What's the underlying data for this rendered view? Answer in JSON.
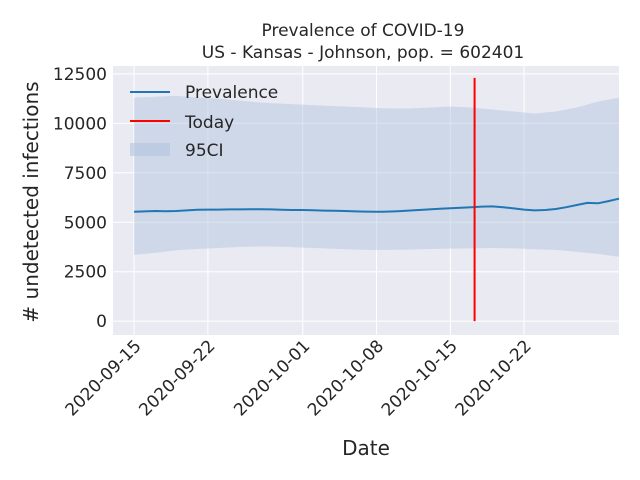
{
  "chart_data": {
    "type": "line",
    "title": "Prevalence of COVID-19",
    "subtitle": "US - Kansas - Johnson, pop. = 602401",
    "xlabel": "Date",
    "ylabel": "# undetected infections",
    "ylim": [
      -700,
      12900
    ],
    "yticks": [
      0,
      2500,
      5000,
      7500,
      10000,
      12500
    ],
    "ytick_labels": [
      "0",
      "2500",
      "5000",
      "7500",
      "10000",
      "12500"
    ],
    "xlim": [
      -2,
      46
    ],
    "xticks": [
      0,
      7,
      16,
      23,
      30,
      37
    ],
    "xtick_labels": [
      "2020-09-15",
      "2020-09-22",
      "2020-10-01",
      "2020-10-08",
      "2020-10-15",
      "2020-10-22"
    ],
    "grid": true,
    "legend_position": "top-left",
    "series": [
      {
        "name": "Prevalence",
        "color": "#1f77b4",
        "x": [
          0,
          1,
          2,
          3,
          4,
          5,
          6,
          7,
          8,
          9,
          10,
          11,
          12,
          13,
          14,
          15,
          16,
          17,
          18,
          19,
          20,
          21,
          22,
          23,
          24,
          25,
          26,
          27,
          28,
          29,
          30,
          31,
          32,
          33,
          34,
          35,
          36,
          37,
          38,
          39,
          40,
          41,
          42,
          43,
          44,
          45,
          46
        ],
        "values": [
          5530,
          5550,
          5570,
          5560,
          5570,
          5600,
          5630,
          5640,
          5640,
          5650,
          5650,
          5660,
          5660,
          5650,
          5630,
          5620,
          5620,
          5610,
          5590,
          5580,
          5570,
          5550,
          5540,
          5530,
          5540,
          5560,
          5590,
          5620,
          5650,
          5680,
          5710,
          5730,
          5760,
          5790,
          5800,
          5760,
          5700,
          5640,
          5600,
          5620,
          5670,
          5760,
          5870,
          5980,
          5960,
          6070,
          6190
        ]
      }
    ],
    "band": {
      "name": "95CI",
      "color": "#b0c4de",
      "x": [
        0,
        2,
        4,
        6,
        8,
        10,
        12,
        14,
        16,
        18,
        20,
        22,
        24,
        26,
        28,
        30,
        32,
        34,
        36,
        38,
        40,
        42,
        44,
        46
      ],
      "lower": [
        3350,
        3450,
        3580,
        3650,
        3700,
        3750,
        3780,
        3760,
        3720,
        3680,
        3640,
        3600,
        3600,
        3620,
        3650,
        3670,
        3680,
        3700,
        3680,
        3640,
        3600,
        3500,
        3400,
        3250
      ],
      "upper": [
        11300,
        11350,
        11400,
        11300,
        11250,
        11150,
        11050,
        11000,
        10950,
        10900,
        10850,
        10800,
        10750,
        10750,
        10800,
        10850,
        10800,
        10700,
        10600,
        10500,
        10600,
        10800,
        11100,
        11300
      ]
    },
    "today": {
      "name": "Today",
      "x": 32.3,
      "color": "#ff0000",
      "y_range": [
        0,
        12300
      ]
    }
  }
}
